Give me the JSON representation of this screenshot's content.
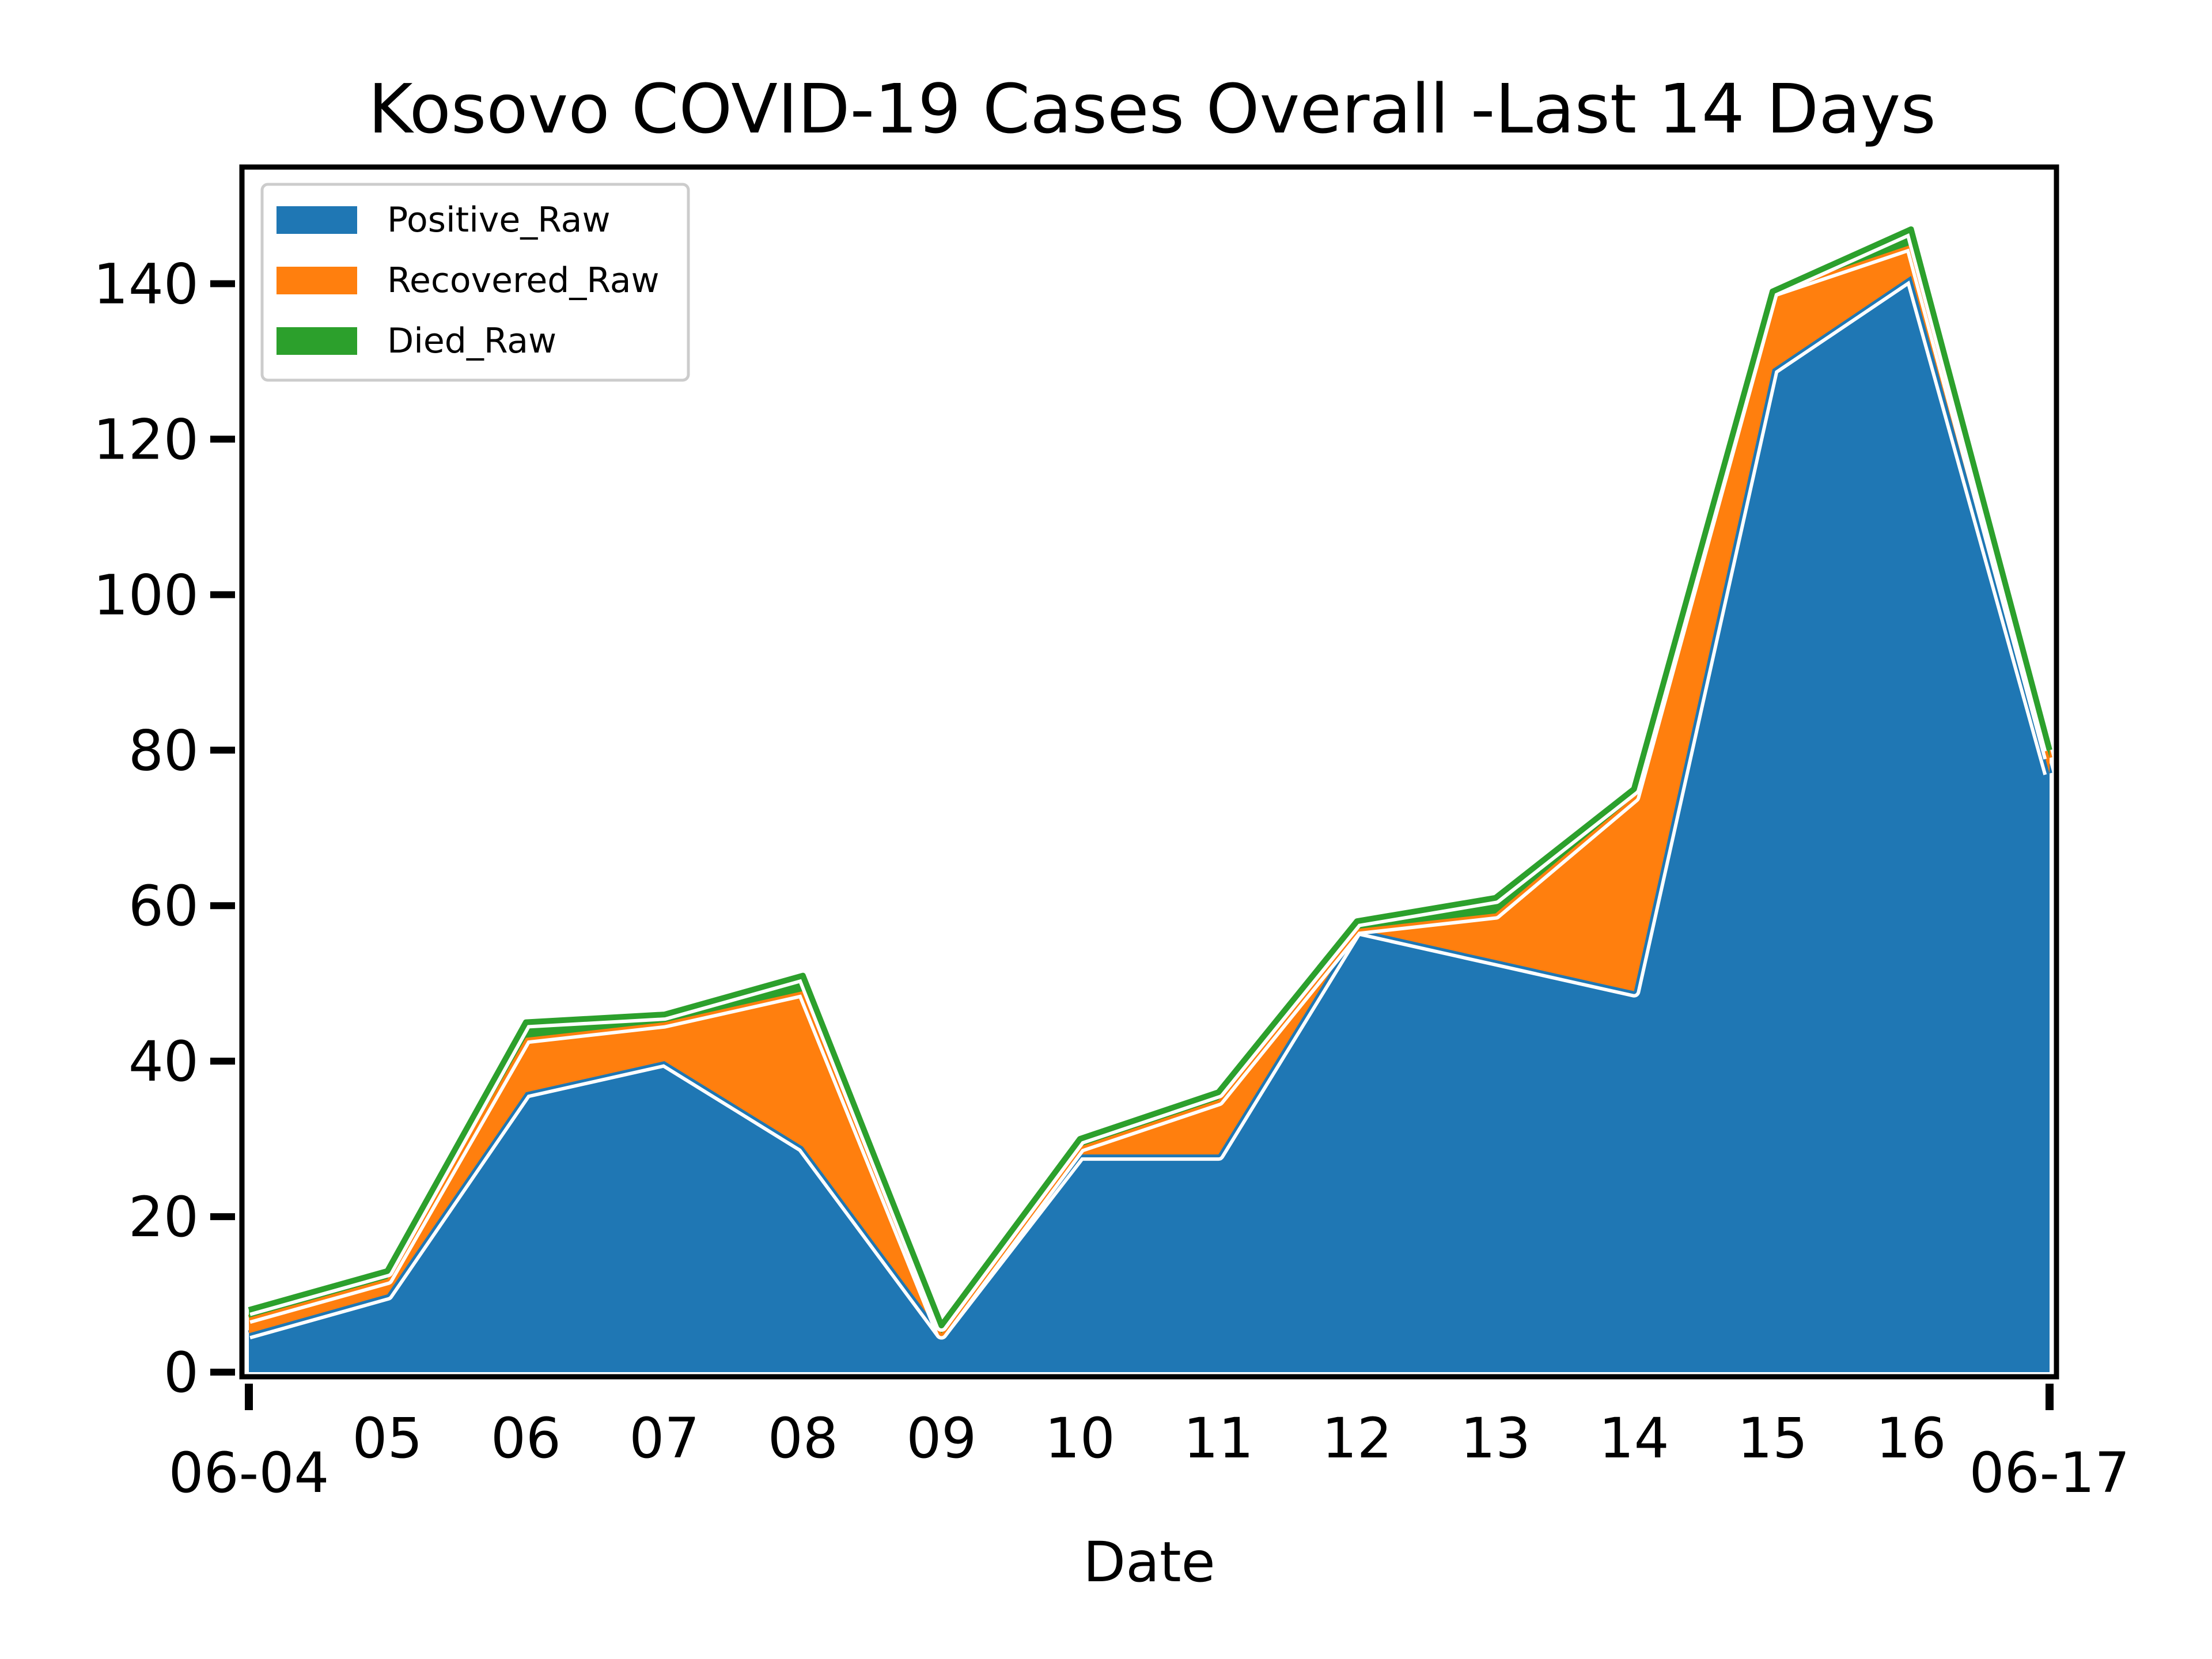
{
  "chart_data": {
    "type": "area",
    "stacked": true,
    "title": "Kosovo COVID-19 Cases Overall -Last 14 Days",
    "xlabel": "Date",
    "ylabel": "",
    "x_tick_labels": [
      "06-04",
      "05",
      "06",
      "07",
      "08",
      "09",
      "10",
      "11",
      "12",
      "13",
      "14",
      "15",
      "16",
      "06-17"
    ],
    "ylim": [
      0,
      155
    ],
    "y_ticks": [
      0,
      20,
      40,
      60,
      80,
      100,
      120,
      140
    ],
    "grid": false,
    "legend_position": "top-left",
    "series": [
      {
        "name": "Positive_Raw",
        "color": "#1f77b4",
        "values": [
          5,
          10,
          36,
          40,
          29,
          5,
          28,
          28,
          57,
          53,
          49,
          129,
          141,
          77
        ]
      },
      {
        "name": "Recovered_Raw",
        "color": "#ff7f0e",
        "values": [
          2,
          2,
          7,
          5,
          20,
          0,
          1,
          7,
          0,
          6,
          25,
          10,
          4,
          2
        ]
      },
      {
        "name": "Died_Raw",
        "color": "#2ca02c",
        "values": [
          1,
          1,
          2,
          1,
          2,
          1,
          1,
          1,
          1,
          2,
          1,
          0,
          2,
          1
        ]
      }
    ]
  }
}
